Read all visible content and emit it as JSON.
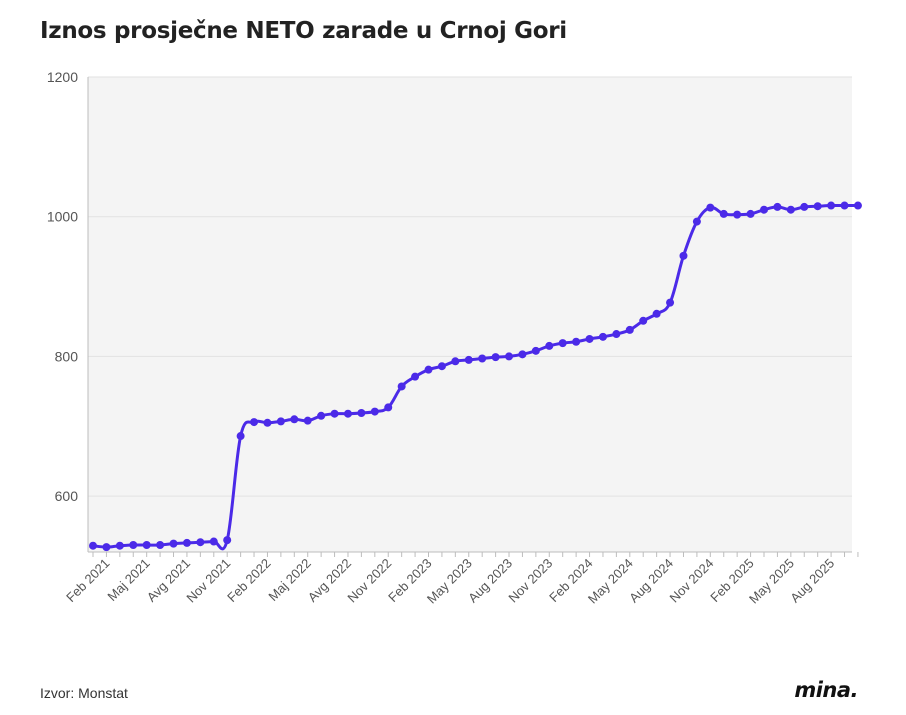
{
  "header": {
    "title": "Iznos prosječne NETO zarade u Crnoj Gori"
  },
  "footer": {
    "source": "Izvor: Monstat",
    "logo": "mina."
  },
  "colors": {
    "line": "#4b2ae8",
    "plot_bg": "#f4f4f4",
    "grid": "#e2e2e2"
  },
  "chart_data": {
    "type": "line",
    "title": "Iznos prosječne NETO zarade u Crnoj Gori",
    "xlabel": "",
    "ylabel": "",
    "ylim": [
      520,
      1200
    ],
    "yticks": [
      600,
      800,
      1000,
      1200
    ],
    "grid": true,
    "legend": "none",
    "x_tick_labels": [
      "Feb 2021",
      "Maj 2021",
      "Avg 2021",
      "Nov 2021",
      "Feb 2022",
      "Maj 2022",
      "Avg 2022",
      "Nov 2022",
      "Feb 2023",
      "May 2023",
      "Aug 2023",
      "Nov 2023",
      "Feb 2024",
      "May 2024",
      "Aug 2024",
      "Nov 2024",
      "Feb 2025",
      "May 2025",
      "Aug 2025"
    ],
    "x_start": "2021-01",
    "x_end": "2025-10",
    "series": [
      {
        "values": [
          529,
          527,
          529,
          530,
          530,
          530,
          532,
          533,
          534,
          535,
          537,
          686,
          706,
          705,
          707,
          710,
          708,
          715,
          718,
          718,
          719,
          721,
          727,
          757,
          771,
          781,
          786,
          793,
          795,
          797,
          799,
          800,
          803,
          808,
          815,
          819,
          821,
          825,
          828,
          832,
          838,
          851,
          861,
          877,
          944,
          993,
          1013,
          1004,
          1003,
          1004,
          1010,
          1014,
          1010,
          1014,
          1015,
          1016,
          1016,
          1016
        ]
      }
    ]
  }
}
